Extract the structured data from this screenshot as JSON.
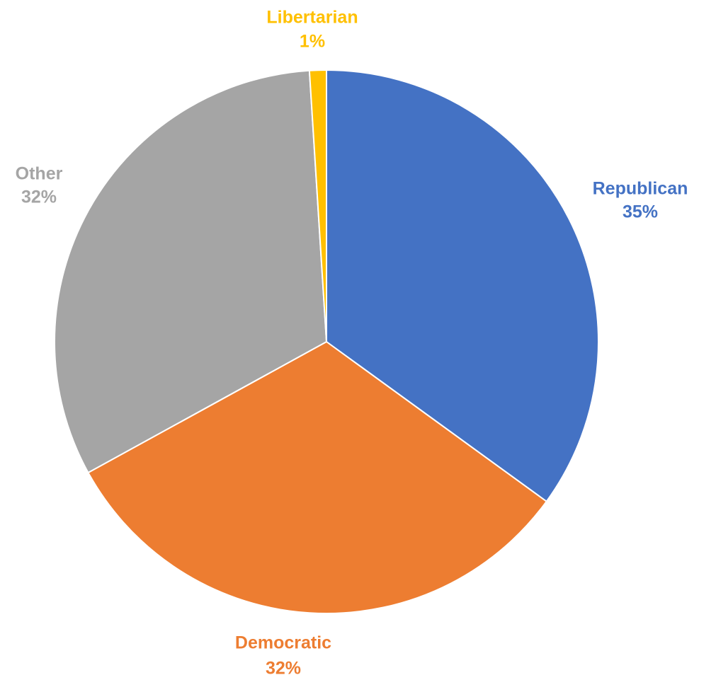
{
  "chart_data": {
    "type": "pie",
    "title": "",
    "slices": [
      {
        "label": "Republican",
        "value": 35,
        "value_label": "35%",
        "color": "#4472C4"
      },
      {
        "label": "Democratic",
        "value": 32,
        "value_label": "32%",
        "color": "#ED7D31"
      },
      {
        "label": "Other",
        "value": 32,
        "value_label": "32%",
        "color": "#A5A5A5"
      },
      {
        "label": "Libertarian",
        "value": 1,
        "value_label": "1%",
        "color": "#FFC000"
      }
    ],
    "start_angle_deg": 0,
    "direction": "clockwise",
    "legend": "none",
    "label_position": "outside"
  }
}
